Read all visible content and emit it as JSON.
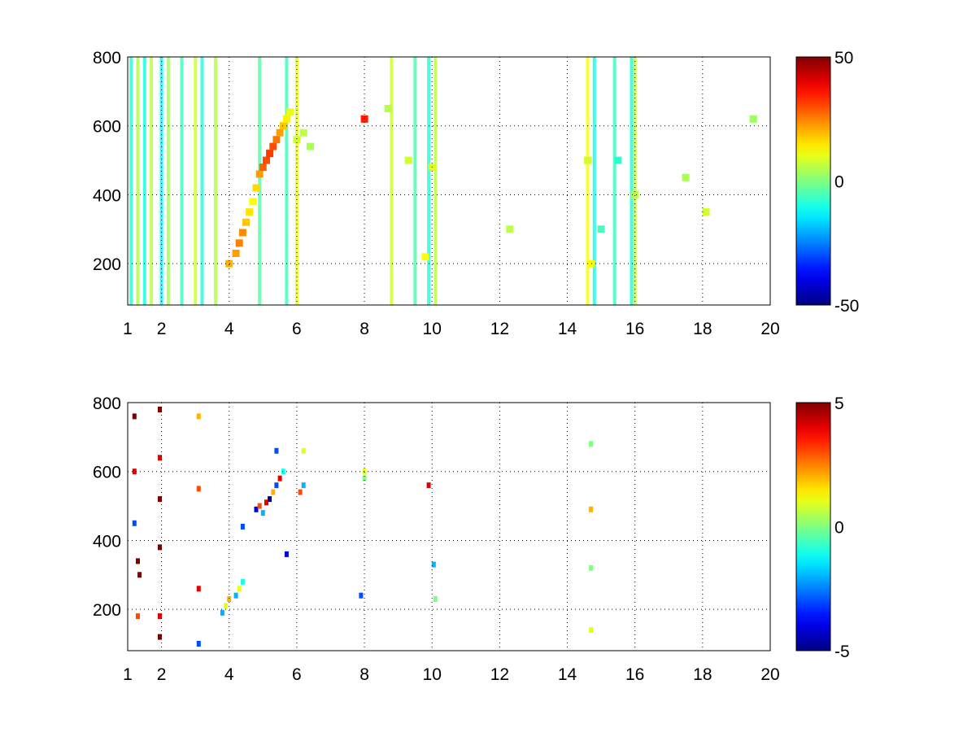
{
  "chart_data": [
    {
      "type": "heatmap",
      "title": "",
      "xlabel": "",
      "ylabel": "",
      "xlim": [
        1,
        20
      ],
      "ylim": [
        80,
        800
      ],
      "x_ticks": [
        1,
        2,
        4,
        6,
        8,
        10,
        12,
        14,
        16,
        18,
        20
      ],
      "y_ticks": [
        200,
        400,
        600,
        800
      ],
      "grid": "dotted",
      "colormap": "jet",
      "color_range": [
        -50,
        50
      ],
      "colorbar_ticks": [
        50,
        0,
        -50
      ],
      "colorbar_placement": "right",
      "cells": [
        [
          4.0,
          200,
          20
        ],
        [
          4.2,
          230,
          22
        ],
        [
          4.3,
          260,
          25
        ],
        [
          4.4,
          290,
          24
        ],
        [
          4.5,
          320,
          18
        ],
        [
          4.6,
          350,
          15
        ],
        [
          4.7,
          380,
          12
        ],
        [
          4.8,
          420,
          16
        ],
        [
          4.9,
          460,
          22
        ],
        [
          5.0,
          480,
          28
        ],
        [
          5.1,
          500,
          30
        ],
        [
          5.2,
          520,
          32
        ],
        [
          5.3,
          540,
          30
        ],
        [
          5.4,
          560,
          26
        ],
        [
          5.5,
          580,
          22
        ],
        [
          5.6,
          600,
          18
        ],
        [
          5.7,
          620,
          14
        ],
        [
          5.8,
          640,
          10
        ],
        [
          6.0,
          560,
          8
        ],
        [
          6.2,
          580,
          6
        ],
        [
          6.4,
          540,
          4
        ],
        [
          8.0,
          620,
          35
        ],
        [
          8.7,
          650,
          5
        ],
        [
          9.3,
          500,
          8
        ],
        [
          9.8,
          220,
          12
        ],
        [
          10.0,
          480,
          10
        ],
        [
          12.3,
          300,
          6
        ],
        [
          14.6,
          500,
          8
        ],
        [
          14.7,
          200,
          12
        ],
        [
          15.0,
          300,
          -6
        ],
        [
          15.5,
          500,
          -8
        ],
        [
          16.0,
          400,
          6
        ],
        [
          17.5,
          450,
          4
        ],
        [
          18.1,
          350,
          8
        ],
        [
          19.5,
          620,
          3
        ]
      ],
      "stripes": [
        {
          "x": 1.1,
          "value": -8
        },
        {
          "x": 1.3,
          "value": 5
        },
        {
          "x": 1.5,
          "value": -10
        },
        {
          "x": 1.7,
          "value": 6
        },
        {
          "x": 2.0,
          "value": -12
        },
        {
          "x": 2.2,
          "value": 4
        },
        {
          "x": 2.6,
          "value": -6
        },
        {
          "x": 3.0,
          "value": 8
        },
        {
          "x": 3.2,
          "value": -9
        },
        {
          "x": 3.6,
          "value": 5
        },
        {
          "x": 4.9,
          "value": -4
        },
        {
          "x": 5.7,
          "value": -6
        },
        {
          "x": 6.0,
          "value": 10
        },
        {
          "x": 8.8,
          "value": 8
        },
        {
          "x": 9.5,
          "value": -5
        },
        {
          "x": 9.9,
          "value": -8
        },
        {
          "x": 10.1,
          "value": 6
        },
        {
          "x": 14.6,
          "value": 12
        },
        {
          "x": 14.8,
          "value": -10
        },
        {
          "x": 15.4,
          "value": -7
        },
        {
          "x": 15.9,
          "value": -9
        },
        {
          "x": 16.0,
          "value": 7
        }
      ]
    },
    {
      "type": "heatmap",
      "title": "",
      "xlabel": "",
      "ylabel": "",
      "xlim": [
        1,
        20
      ],
      "ylim": [
        80,
        800
      ],
      "x_ticks": [
        1,
        2,
        4,
        6,
        8,
        10,
        12,
        14,
        16,
        18,
        20
      ],
      "y_ticks": [
        200,
        400,
        600,
        800
      ],
      "grid": "dotted",
      "colormap": "jet",
      "color_range": [
        -5,
        5
      ],
      "colorbar_ticks": [
        5,
        0,
        -5
      ],
      "colorbar_placement": "right",
      "cells": [
        [
          1.2,
          760,
          5
        ],
        [
          1.2,
          600,
          4
        ],
        [
          1.2,
          450,
          -3
        ],
        [
          1.3,
          340,
          5
        ],
        [
          1.35,
          300,
          5
        ],
        [
          1.3,
          180,
          3
        ],
        [
          1.95,
          780,
          5
        ],
        [
          1.95,
          640,
          4
        ],
        [
          1.95,
          520,
          5
        ],
        [
          1.95,
          380,
          5
        ],
        [
          1.95,
          180,
          4
        ],
        [
          1.95,
          120,
          5
        ],
        [
          3.1,
          760,
          2
        ],
        [
          3.1,
          550,
          3
        ],
        [
          3.1,
          260,
          4
        ],
        [
          3.1,
          100,
          -3
        ],
        [
          3.8,
          190,
          -2
        ],
        [
          3.9,
          210,
          1
        ],
        [
          4.0,
          230,
          2
        ],
        [
          4.2,
          240,
          -2
        ],
        [
          4.3,
          260,
          1
        ],
        [
          4.4,
          280,
          -1
        ],
        [
          4.4,
          440,
          -3
        ],
        [
          4.8,
          490,
          -4
        ],
        [
          4.9,
          500,
          3
        ],
        [
          5.0,
          480,
          -2
        ],
        [
          5.1,
          510,
          4
        ],
        [
          5.2,
          520,
          -5
        ],
        [
          5.3,
          540,
          2
        ],
        [
          5.4,
          560,
          -3
        ],
        [
          5.5,
          580,
          4
        ],
        [
          5.6,
          600,
          -1
        ],
        [
          5.4,
          660,
          -3
        ],
        [
          5.7,
          360,
          -4
        ],
        [
          6.1,
          540,
          3
        ],
        [
          6.2,
          560,
          -2
        ],
        [
          6.2,
          660,
          1
        ],
        [
          8.0,
          600,
          1
        ],
        [
          8.0,
          580,
          0
        ],
        [
          7.9,
          240,
          -3
        ],
        [
          9.9,
          560,
          4
        ],
        [
          10.05,
          330,
          -2
        ],
        [
          10.1,
          230,
          0
        ],
        [
          14.7,
          680,
          0
        ],
        [
          14.7,
          490,
          2
        ],
        [
          14.7,
          320,
          0
        ],
        [
          14.7,
          140,
          1
        ]
      ]
    }
  ]
}
